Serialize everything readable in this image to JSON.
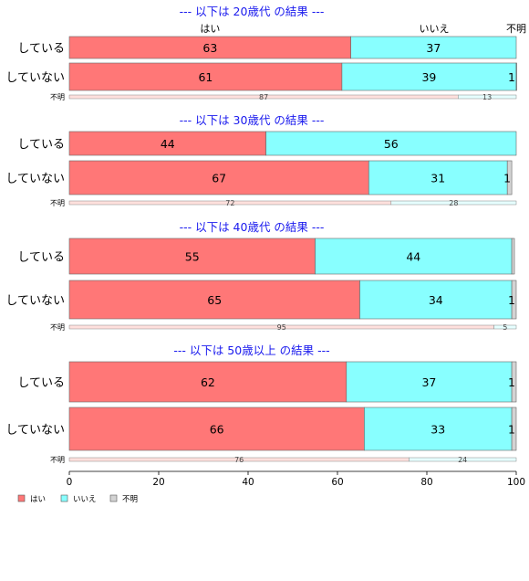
{
  "chart_data": {
    "type": "bar",
    "orientation": "horizontal",
    "stacked": "percent",
    "xlim": [
      0,
      100
    ],
    "x_ticks": [
      "0",
      "20",
      "40",
      "60",
      "80",
      "100"
    ],
    "header_labels": [
      "はい",
      "いいえ",
      "不明"
    ],
    "legend": {
      "position": "bottom-left",
      "items": [
        {
          "name": "はい",
          "color": "#ff7777"
        },
        {
          "name": "いいえ",
          "color": "#88ffff"
        },
        {
          "name": "不明",
          "color": "#d3d3d3"
        }
      ]
    },
    "panels": [
      {
        "title": "--- 以下は 20歳代 の結果 ---",
        "rows": [
          {
            "label": "している",
            "values": [
              63,
              37,
              0
            ],
            "value_labels": [
              "63",
              "37",
              ""
            ]
          },
          {
            "label": "していない",
            "values": [
              61,
              39,
              1
            ],
            "value_labels": [
              "61",
              "39",
              "1"
            ]
          }
        ],
        "unknown_row": {
          "label": "不明",
          "values": [
            87,
            13,
            0
          ],
          "value_labels": [
            "87",
            "13",
            ""
          ]
        }
      },
      {
        "title": "--- 以下は 30歳代 の結果 ---",
        "rows": [
          {
            "label": "している",
            "values": [
              44,
              56,
              0
            ],
            "value_labels": [
              "44",
              "56",
              ""
            ]
          },
          {
            "label": "していない",
            "values": [
              67,
              31,
              1
            ],
            "value_labels": [
              "67",
              "31",
              "1"
            ]
          }
        ],
        "unknown_row": {
          "label": "不明",
          "values": [
            72,
            28,
            0
          ],
          "value_labels": [
            "72",
            "28",
            ""
          ]
        }
      },
      {
        "title": "--- 以下は 40歳代 の結果 ---",
        "rows": [
          {
            "label": "している",
            "values": [
              55,
              44,
              0.6
            ],
            "value_labels": [
              "55",
              "44",
              ""
            ]
          },
          {
            "label": "していない",
            "values": [
              65,
              34,
              1
            ],
            "value_labels": [
              "65",
              "34",
              "1"
            ]
          }
        ],
        "unknown_row": {
          "label": "不明",
          "values": [
            95,
            5,
            0
          ],
          "value_labels": [
            "95",
            "5",
            ""
          ]
        }
      },
      {
        "title": "--- 以下は 50歳以上 の結果 ---",
        "rows": [
          {
            "label": "している",
            "values": [
              62,
              37,
              1
            ],
            "value_labels": [
              "62",
              "37",
              "1"
            ]
          },
          {
            "label": "していない",
            "values": [
              66,
              33,
              1
            ],
            "value_labels": [
              "66",
              "33",
              "1"
            ]
          }
        ],
        "unknown_row": {
          "label": "不明",
          "values": [
            76,
            24,
            0
          ],
          "value_labels": [
            "76",
            "24",
            ""
          ]
        }
      }
    ]
  }
}
